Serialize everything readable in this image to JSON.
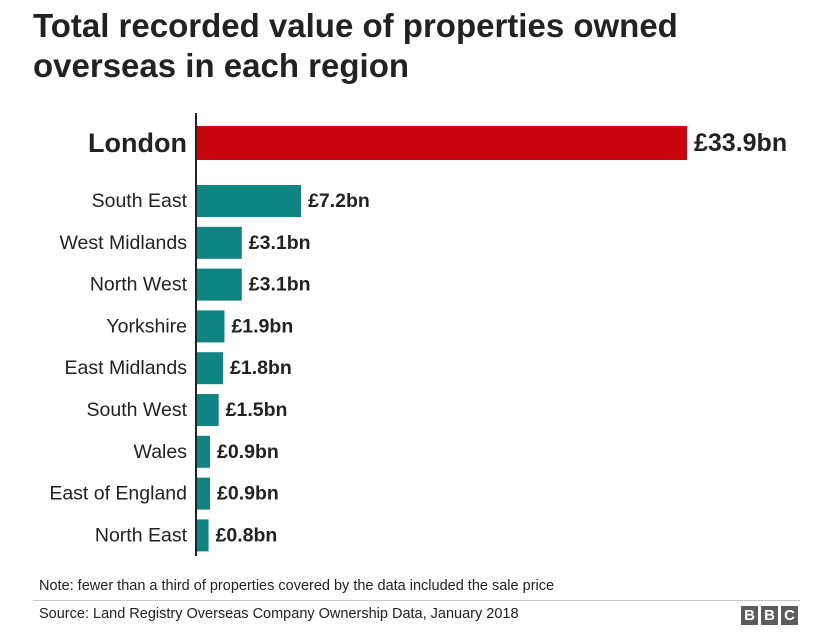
{
  "title": "Total recorded value of properties owned overseas in each region",
  "chart_data": {
    "type": "bar",
    "orientation": "horizontal",
    "title": "Total recorded value of properties owned overseas in each region",
    "categories": [
      "London",
      "South East",
      "West Midlands",
      "North West",
      "Yorkshire",
      "East Midlands",
      "South West",
      "Wales",
      "East of England",
      "North East"
    ],
    "values": [
      33.9,
      7.2,
      3.1,
      3.1,
      1.9,
      1.8,
      1.5,
      0.9,
      0.9,
      0.8
    ],
    "value_labels": [
      "£33.9bn",
      "£7.2bn",
      "£3.1bn",
      "£3.1bn",
      "£1.9bn",
      "£1.8bn",
      "£1.5bn",
      "£0.9bn",
      "£0.9bn",
      "£0.8bn"
    ],
    "unit": "£bn",
    "highlight": "London",
    "colors": {
      "highlight": "#c8050f",
      "default": "#0e8583",
      "axis": "#222222"
    },
    "xlim": [
      0,
      33.9
    ],
    "grid": false,
    "legend": "none"
  },
  "footer": {
    "note": "Note: fewer than a third of properties covered by the data included the sale price",
    "source": "Source: Land Registry Overseas Company Ownership Data, January 2018",
    "logo_letters": [
      "B",
      "B",
      "C"
    ]
  }
}
